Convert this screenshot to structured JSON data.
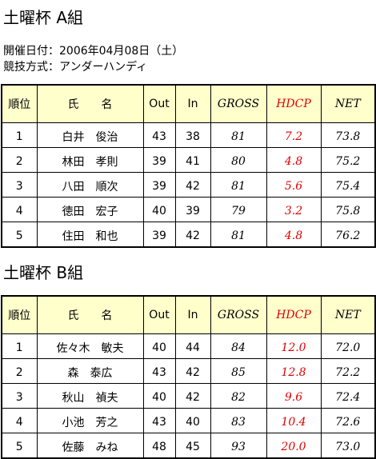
{
  "info": {
    "date_label": "開催日付：2006年04月08日（土）",
    "format_label": "競技方式：アンダーハンディ"
  },
  "columns": [
    "順位",
    "氏　　名",
    "Out",
    "In",
    "GROSS",
    "HDCP",
    "NET"
  ],
  "groups": [
    {
      "title": "土曜杯 A組",
      "rows": [
        [
          "1",
          "白井　俊治",
          "43",
          "38",
          "81",
          "7.2",
          "73.8"
        ],
        [
          "2",
          "林田　孝則",
          "39",
          "41",
          "80",
          "4.8",
          "75.2"
        ],
        [
          "3",
          "八田　順次",
          "39",
          "42",
          "81",
          "5.6",
          "75.4"
        ],
        [
          "4",
          "徳田　宏子",
          "40",
          "39",
          "79",
          "3.2",
          "75.8"
        ],
        [
          "5",
          "住田　和也",
          "39",
          "42",
          "81",
          "4.8",
          "76.2"
        ]
      ]
    },
    {
      "title": "土曜杯 B組",
      "rows": [
        [
          "1",
          "佐々木　敏夫",
          "40",
          "44",
          "84",
          "12.0",
          "72.0"
        ],
        [
          "2",
          "森　泰広",
          "43",
          "42",
          "85",
          "12.8",
          "72.2"
        ],
        [
          "3",
          "秋山　禎夫",
          "40",
          "42",
          "82",
          "9.6",
          "72.4"
        ],
        [
          "4",
          "小池　芳之",
          "43",
          "40",
          "83",
          "10.4",
          "72.6"
        ],
        [
          "5",
          "佐藤　みね",
          "48",
          "45",
          "93",
          "20.0",
          "73.0"
        ]
      ]
    }
  ]
}
